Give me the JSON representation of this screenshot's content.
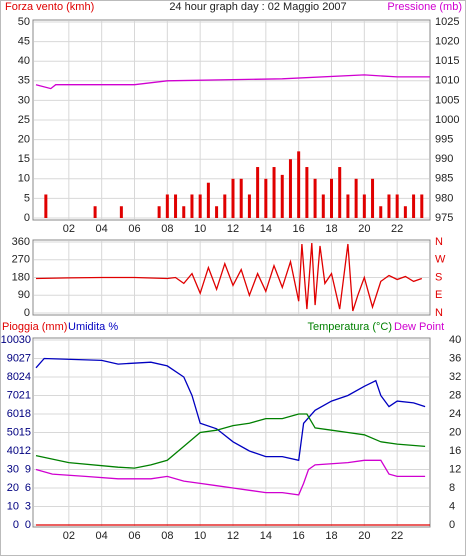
{
  "chart_data": [
    {
      "type": "bar",
      "title": "24 hour graph day : 02 Maggio 2007",
      "xlim": [
        0,
        24
      ],
      "xticks": [
        {
          "value": 2,
          "label": "02"
        },
        {
          "value": 4,
          "label": "04"
        },
        {
          "value": 6,
          "label": "06"
        },
        {
          "value": 8,
          "label": "08"
        },
        {
          "value": 10,
          "label": "10"
        },
        {
          "value": 12,
          "label": "12"
        },
        {
          "value": 14,
          "label": "14"
        },
        {
          "value": 16,
          "label": "16"
        },
        {
          "value": 18,
          "label": "18"
        },
        {
          "value": 20,
          "label": "20"
        },
        {
          "value": 22,
          "label": "22"
        }
      ],
      "ylim": [
        0,
        50
      ],
      "yticks": [
        0,
        5,
        10,
        15,
        20,
        25,
        30,
        35,
        40,
        45,
        50
      ],
      "y2lim": [
        975,
        1025
      ],
      "y2ticks": [
        975,
        980,
        985,
        990,
        995,
        1000,
        1005,
        1010,
        1015,
        1020,
        1025
      ],
      "grid": true,
      "series": [
        {
          "name": "Forza vento (kmh)",
          "color": "#e00000",
          "x": [
            0.6,
            3.6,
            5.2,
            7.5,
            8,
            8.5,
            9,
            9.5,
            10,
            10.5,
            11,
            11.5,
            12,
            12.5,
            13,
            13.5,
            14,
            14.5,
            15,
            15.5,
            16,
            16.5,
            17,
            17.5,
            18,
            18.5,
            19,
            19.5,
            20,
            20.5,
            21,
            21.5,
            22,
            22.5,
            23,
            23.5
          ],
          "values": [
            6,
            3,
            3,
            3,
            6,
            6,
            3,
            6,
            6,
            9,
            3,
            6,
            10,
            10,
            6,
            13,
            10,
            13,
            11,
            15,
            17,
            13,
            10,
            6,
            10,
            13,
            6,
            10,
            6,
            10,
            3,
            6,
            6,
            3,
            6,
            6
          ]
        },
        {
          "name": "Pressione (mb)",
          "color": "#d000d0",
          "type": "line",
          "axis": "y2",
          "x": [
            0,
            0.9,
            1.2,
            6,
            8,
            15,
            20,
            22,
            24
          ],
          "values": [
            1009,
            1008,
            1009,
            1009,
            1010,
            1010.5,
            1011.5,
            1011,
            1011
          ]
        }
      ]
    },
    {
      "type": "line",
      "xlim": [
        0,
        24
      ],
      "ylim": [
        0,
        360
      ],
      "yticks": [
        0,
        90,
        180,
        270,
        360
      ],
      "y2lim": [
        0,
        360
      ],
      "y2ticks": [
        {
          "value": 0,
          "label": "N"
        },
        {
          "value": 90,
          "label": "E"
        },
        {
          "value": 180,
          "label": "S"
        },
        {
          "value": 270,
          "label": "W"
        },
        {
          "value": 360,
          "label": "N"
        }
      ],
      "grid": true,
      "series": [
        {
          "color": "#e00000",
          "x": [
            0,
            2,
            4,
            6,
            8,
            8.5,
            9,
            9.5,
            10,
            10.5,
            11,
            11.5,
            12,
            12.5,
            13,
            13.5,
            14,
            14.5,
            15,
            15.5,
            16,
            16.2,
            16.5,
            16.8,
            17,
            17.3,
            17.6,
            18,
            18.5,
            19,
            19.3,
            19.6,
            20,
            20.5,
            21,
            21.5,
            22,
            22.5,
            23,
            23.5
          ],
          "values": [
            175,
            178,
            180,
            180,
            175,
            180,
            150,
            200,
            100,
            230,
            120,
            250,
            140,
            220,
            90,
            200,
            110,
            240,
            130,
            260,
            60,
            350,
            20,
            355,
            40,
            340,
            150,
            200,
            20,
            350,
            10,
            90,
            180,
            30,
            160,
            190,
            170,
            185,
            160,
            175
          ]
        }
      ]
    },
    {
      "type": "line",
      "xlim": [
        0,
        24
      ],
      "xticks": [
        {
          "value": 2,
          "label": "02"
        },
        {
          "value": 4,
          "label": "04"
        },
        {
          "value": 6,
          "label": "06"
        },
        {
          "value": 8,
          "label": "08"
        },
        {
          "value": 10,
          "label": "10"
        },
        {
          "value": 12,
          "label": "12"
        },
        {
          "value": 14,
          "label": "14"
        },
        {
          "value": 16,
          "label": "16"
        },
        {
          "value": 18,
          "label": "18"
        },
        {
          "value": 20,
          "label": "20"
        },
        {
          "value": 22,
          "label": "22"
        }
      ],
      "ylim": [
        0,
        100
      ],
      "yticks": [
        0,
        10,
        20,
        30,
        40,
        50,
        60,
        70,
        80,
        90,
        100
      ],
      "y3lim": [
        0,
        30
      ],
      "y3ticks": [
        0,
        3,
        6,
        9,
        12,
        15,
        18,
        21,
        24,
        27,
        30
      ],
      "y2lim": [
        0,
        40
      ],
      "y2ticks": [
        0,
        4,
        8,
        12,
        16,
        20,
        24,
        28,
        32,
        36,
        40
      ],
      "grid": true,
      "series": [
        {
          "name": "Pioggia (mm)",
          "color": "#e00000",
          "axis": "y3",
          "x": [
            0,
            24
          ],
          "values": [
            0,
            0
          ]
        },
        {
          "name": "Umidita %",
          "color": "#0000c0",
          "x": [
            0,
            0.5,
            4,
            5,
            7,
            8,
            9,
            9.5,
            10,
            11,
            12,
            13,
            14,
            15,
            16,
            16.3,
            17,
            18,
            19,
            20,
            20.7,
            21,
            21.5,
            22,
            23,
            23.7
          ],
          "values": [
            85,
            90,
            89,
            87,
            88,
            86,
            80,
            70,
            55,
            52,
            45,
            40,
            37,
            37,
            35,
            55,
            62,
            67,
            70,
            75,
            78,
            70,
            64,
            67,
            66,
            64
          ]
        },
        {
          "name": "Temperatura (°C)",
          "color": "#008000",
          "axis": "y2",
          "x": [
            0,
            2,
            5,
            6,
            7,
            8,
            9,
            10,
            11,
            12,
            13,
            14,
            15,
            16,
            16.5,
            17,
            18,
            19,
            20,
            21,
            22,
            23.7
          ],
          "values": [
            15,
            13.5,
            12.5,
            12.3,
            13,
            14,
            17,
            20,
            20.5,
            21.5,
            22,
            23,
            23,
            24,
            24,
            21,
            20.5,
            20,
            19.5,
            18,
            17.5,
            17
          ]
        },
        {
          "name": "Dew Point",
          "color": "#d000d0",
          "axis": "y2",
          "x": [
            0,
            1,
            3,
            5,
            7,
            8,
            9,
            10,
            11,
            12,
            13,
            14,
            15,
            16,
            16.3,
            16.6,
            17,
            19,
            20,
            21,
            21.5,
            22,
            23.7
          ],
          "values": [
            12,
            11,
            10.5,
            10,
            10,
            10.5,
            9.5,
            9,
            8.5,
            8,
            7.5,
            7,
            7,
            6.5,
            9,
            12,
            13,
            13.5,
            14,
            14,
            11,
            10.5,
            10.5
          ]
        }
      ]
    }
  ]
}
